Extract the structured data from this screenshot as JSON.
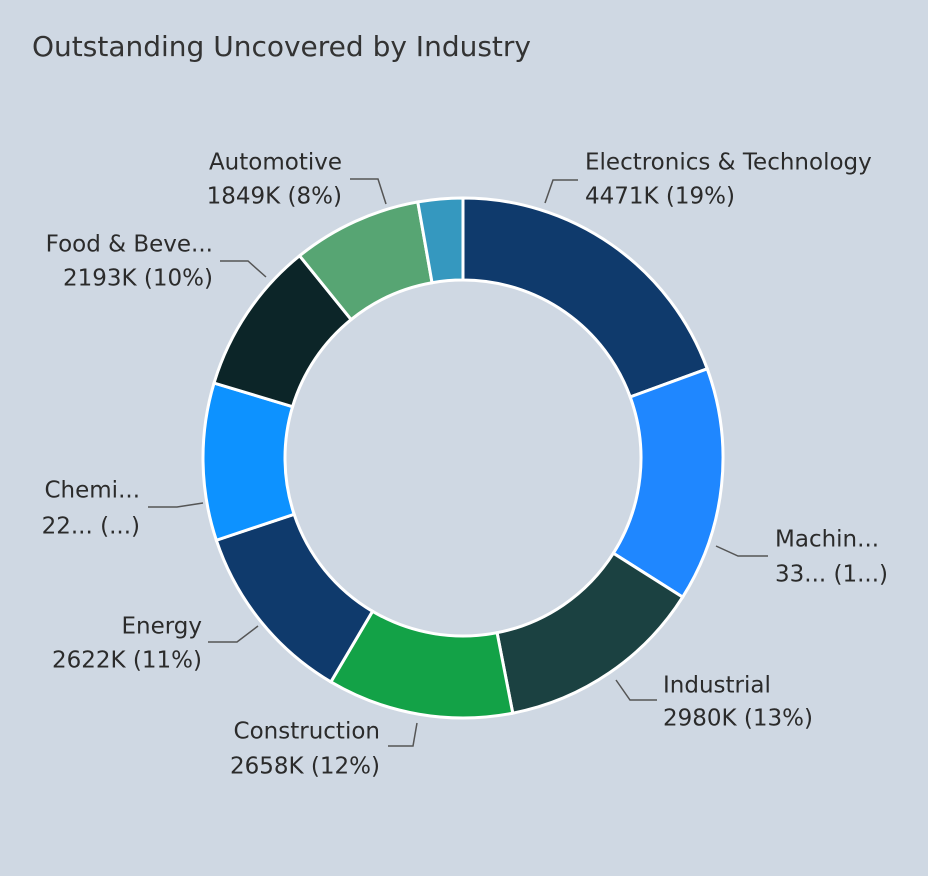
{
  "chart_data": {
    "type": "donut",
    "title": "Outstanding Uncovered by Industry",
    "categories": [
      "Electronics & Technology",
      "Machin...",
      "Industrial",
      "Construction",
      "Energy",
      "Chemi...",
      "Food & Beve...",
      "Automotive",
      null
    ],
    "values": [
      4471,
      3350,
      2980,
      2658,
      2622,
      2250,
      2193,
      1849,
      640
    ],
    "value_labels": [
      "4471K (19%)",
      "33... (1...)",
      "2980K (13%)",
      "2658K (12%)",
      "2622K (11%)",
      "22... (...)",
      "2193K (10%)",
      "1849K (8%)",
      null
    ],
    "colors": [
      "#0f3a6c",
      "#1f87ff",
      "#1b4141",
      "#13a247",
      "#0f3a6c",
      "#0d92ff",
      "#0c2528",
      "#57a573",
      "#3598bf"
    ]
  }
}
